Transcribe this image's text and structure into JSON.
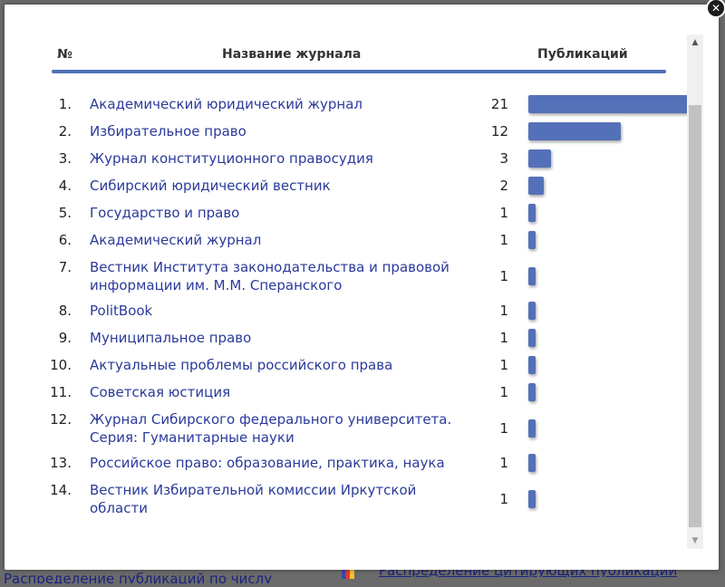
{
  "background": {
    "left_link": "Распределение публикаций по числу",
    "right_link": "Распределение цитирующих публикаций"
  },
  "modal": {
    "close_icon": "close-icon",
    "close_glyph": "✕",
    "columns": {
      "num": "№",
      "name": "Название журнала",
      "pubs": "Публикаций"
    },
    "accent_color": "#5470b8",
    "rows": [
      {
        "num": "1.",
        "title": "Академический юридический журнал",
        "count": "21",
        "value": 21
      },
      {
        "num": "2.",
        "title": "Избирательное право",
        "count": "12",
        "value": 12
      },
      {
        "num": "3.",
        "title": "Журнал конституционного правосудия",
        "count": "3",
        "value": 3
      },
      {
        "num": "4.",
        "title": "Сибирский юридический вестник",
        "count": "2",
        "value": 2
      },
      {
        "num": "5.",
        "title": "Государство и право",
        "count": "1",
        "value": 1
      },
      {
        "num": "6.",
        "title": "Академический журнал",
        "count": "1",
        "value": 1
      },
      {
        "num": "7.",
        "title": "Вестник Института законодательства и правовой информации им. М.М. Сперанского",
        "count": "1",
        "value": 1
      },
      {
        "num": "8.",
        "title": "PolitBook",
        "count": "1",
        "value": 1
      },
      {
        "num": "9.",
        "title": "Муниципальное право",
        "count": "1",
        "value": 1
      },
      {
        "num": "10.",
        "title": "Актуальные проблемы российского права",
        "count": "1",
        "value": 1
      },
      {
        "num": "11.",
        "title": "Советская юстиция",
        "count": "1",
        "value": 1
      },
      {
        "num": "12.",
        "title": "Журнал Сибирского федерального университета. Серия: Гуманитарные науки",
        "count": "1",
        "value": 1
      },
      {
        "num": "13.",
        "title": "Российское право: образование, практика, наука",
        "count": "1",
        "value": 1
      },
      {
        "num": "14.",
        "title": "Вестник Избирательной комиссии Иркутской области",
        "count": "1",
        "value": 1
      }
    ],
    "scrollbar": {
      "up_glyph": "▲",
      "down_glyph": "▼"
    }
  }
}
